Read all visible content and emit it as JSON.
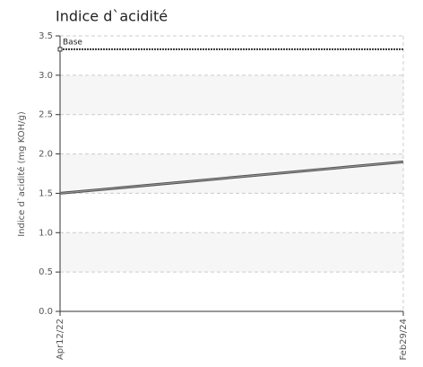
{
  "chart_data": {
    "type": "line",
    "title": "Indice d`acidité",
    "y_label": "Indice d`acidité (mg KOH/g)",
    "categories": [
      "Apr12/22",
      "Feb29/24"
    ],
    "series": [
      {
        "color": "#555555",
        "values": [
          1.5,
          1.9
        ]
      },
      {
        "name": "Base",
        "color": "#333333",
        "values": [
          3.33,
          3.33
        ],
        "style": "dotted"
      }
    ],
    "ylim": [
      0,
      3.5
    ],
    "yticks": [
      {
        "value": 0,
        "label": "0.0"
      },
      0.5,
      {
        "value": 1,
        "label": "1.0"
      },
      1.5,
      {
        "value": 2,
        "label": "2.0"
      },
      2.5,
      {
        "value": 3,
        "label": "3.0"
      },
      3.5
    ],
    "grid": true
  }
}
